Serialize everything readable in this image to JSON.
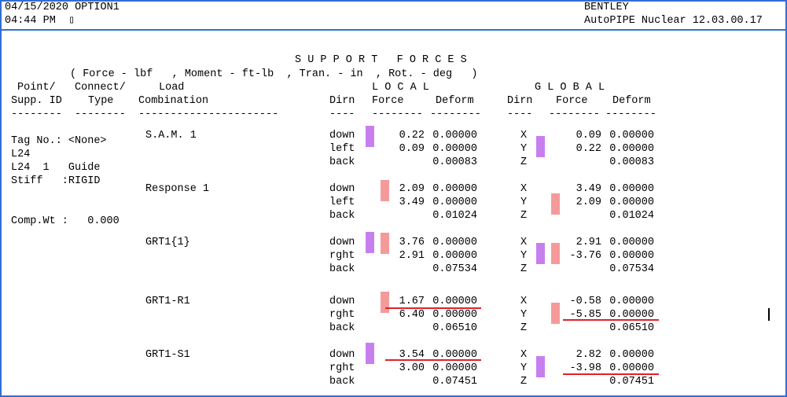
{
  "header": {
    "date_line": "04/15/2020 OPTION1",
    "time_line": "04:44 PM  ▯",
    "company": "BENTLEY",
    "product": "AutoPIPE Nuclear 12.03.00.17"
  },
  "report": {
    "title": "S U P P O R T   F O R C E S",
    "units": "( Force - lbf   , Moment - ft-lb  , Tran. - in  , Rot. - deg   )",
    "headings": {
      "point": "Point/",
      "connect": "Connect/",
      "load": "Load",
      "local": "L O C A L",
      "global": "G L O B A L",
      "supp_id": "Supp. ID",
      "type": "Type",
      "combination": "Combination",
      "dirn": "Dirn",
      "force": "Force",
      "deform": "Deform"
    },
    "dash_lines": {
      "point": "--------",
      "connect": "--------",
      "combination": "----------------------",
      "dirn": "----",
      "force": "--------",
      "deform": "--------"
    },
    "support_info": {
      "tag": "Tag No.: <None>",
      "point": "L24",
      "point_type": "L24  1   Guide",
      "stiff": "Stiff   :RIGID",
      "comp_wt": "Comp.Wt :   0.000"
    },
    "combinations": [
      {
        "name": "S.A.M. 1",
        "rows": [
          {
            "ldir": "down",
            "lforce": "0.22",
            "ldef": "0.00000",
            "gdir": "X",
            "gforce": "0.09",
            "gdef": "0.00000"
          },
          {
            "ldir": "left",
            "lforce": "0.09",
            "ldef": "0.00000",
            "gdir": "Y",
            "gforce": "0.22",
            "gdef": "0.00000"
          },
          {
            "ldir": "back",
            "lforce": "",
            "ldef": "0.00083",
            "gdir": "Z",
            "gforce": "",
            "gdef": "0.00083"
          }
        ]
      },
      {
        "name": "Response 1",
        "rows": [
          {
            "ldir": "down",
            "lforce": "2.09",
            "ldef": "0.00000",
            "gdir": "X",
            "gforce": "3.49",
            "gdef": "0.00000"
          },
          {
            "ldir": "left",
            "lforce": "3.49",
            "ldef": "0.00000",
            "gdir": "Y",
            "gforce": "2.09",
            "gdef": "0.00000"
          },
          {
            "ldir": "back",
            "lforce": "",
            "ldef": "0.01024",
            "gdir": "Z",
            "gforce": "",
            "gdef": "0.01024"
          }
        ]
      },
      {
        "name": "GRT1{1}",
        "rows": [
          {
            "ldir": "down",
            "lforce": "3.76",
            "ldef": "0.00000",
            "gdir": "X",
            "gforce": "2.91",
            "gdef": "0.00000"
          },
          {
            "ldir": "rght",
            "lforce": "2.91",
            "ldef": "0.00000",
            "gdir": "Y",
            "gforce": "-3.76",
            "gdef": "0.00000"
          },
          {
            "ldir": "back",
            "lforce": "",
            "ldef": "0.07534",
            "gdir": "Z",
            "gforce": "",
            "gdef": "0.07534"
          }
        ]
      },
      {
        "name": "GRT1-R1",
        "rows": [
          {
            "ldir": "down",
            "lforce": "1.67",
            "ldef": "0.00000",
            "gdir": "X",
            "gforce": "-0.58",
            "gdef": "0.00000"
          },
          {
            "ldir": "rght",
            "lforce": "6.40",
            "ldef": "0.00000",
            "gdir": "Y",
            "gforce": "-5.85",
            "gdef": "0.00000"
          },
          {
            "ldir": "back",
            "lforce": "",
            "ldef": "0.06510",
            "gdir": "Z",
            "gforce": "",
            "gdef": "0.06510"
          }
        ]
      },
      {
        "name": "GRT1-S1",
        "rows": [
          {
            "ldir": "down",
            "lforce": "3.54",
            "ldef": "0.00000",
            "gdir": "X",
            "gforce": "2.82",
            "gdef": "0.00000"
          },
          {
            "ldir": "rght",
            "lforce": "3.00",
            "ldef": "0.00000",
            "gdir": "Y",
            "gforce": "-3.98",
            "gdef": "0.00000"
          },
          {
            "ldir": "back",
            "lforce": "",
            "ldef": "0.07451",
            "gdir": "Z",
            "gforce": "",
            "gdef": "0.07451"
          }
        ]
      }
    ]
  },
  "colors": {
    "frame": "#2f6fd6",
    "sam_bar": "#c77ff0",
    "response_bar": "#f59a9a",
    "underline": "#e0202a"
  }
}
